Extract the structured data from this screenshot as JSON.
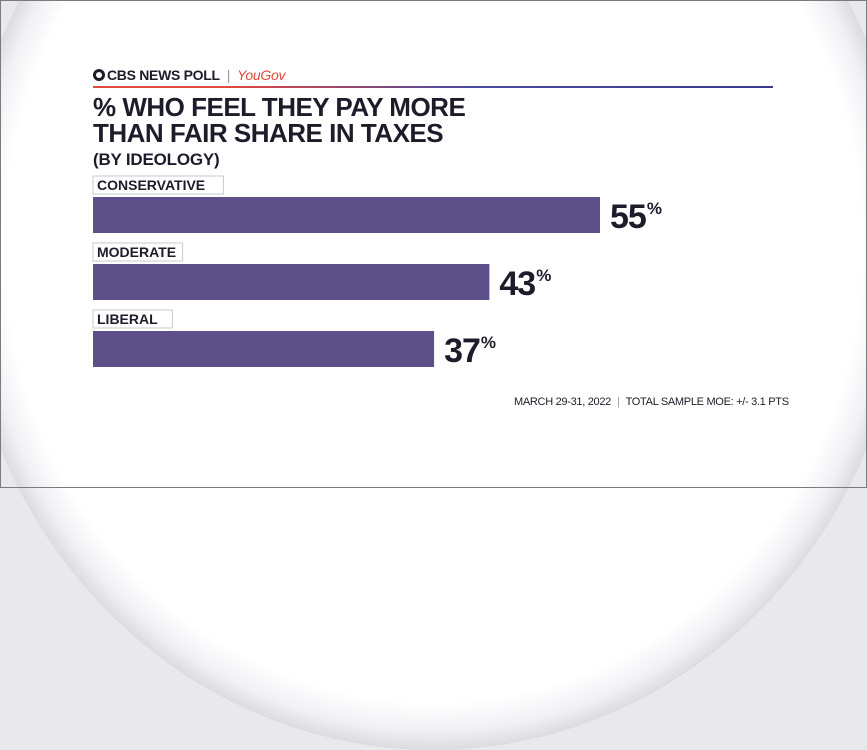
{
  "header": {
    "brand": "CBS NEWS POLL",
    "partner": "YouGov",
    "title_line1": "% WHO FEEL THEY PAY MORE",
    "title_line2": "THAN FAIR SHARE IN TAXES",
    "subtitle": "(BY IDEOLOGY)"
  },
  "footer": {
    "date": "MARCH 29-31, 2022",
    "moe": "TOTAL SAMPLE MOE: +/- 3.1 PTS"
  },
  "colors": {
    "bar": "#5d4f8a",
    "text": "#1c1c2a",
    "accent_red": "#e2483d"
  },
  "chart_data": {
    "type": "bar",
    "orientation": "horizontal",
    "categories": [
      "CONSERVATIVE",
      "MODERATE",
      "LIBERAL"
    ],
    "values": [
      55,
      43,
      37
    ],
    "value_suffix": "%",
    "xlim": [
      0,
      100
    ],
    "grid": false,
    "legend": "none"
  }
}
